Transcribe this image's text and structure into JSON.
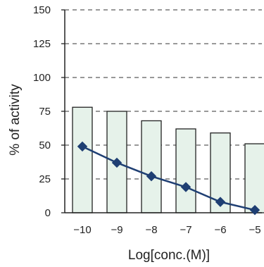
{
  "chart_data": {
    "type": "bar",
    "categories": [
      "-10",
      "-9",
      "-8",
      "-7",
      "-6",
      "-5"
    ],
    "xlabel": "Log[conc.(M)]",
    "ylabel": "% of activity",
    "ylim": [
      0,
      150
    ],
    "yticks": [
      "0",
      "25",
      "50",
      "75",
      "100",
      "125",
      "150"
    ],
    "grid": "dashed horizontal",
    "series": [
      {
        "type": "bar",
        "values": [
          78,
          75,
          68,
          62,
          59,
          51
        ],
        "color": "#e6f2ea",
        "stroke": "#222222"
      },
      {
        "type": "line",
        "values": [
          49,
          37,
          27,
          19,
          8,
          2
        ],
        "color": "#1f3f73",
        "marker": "diamond"
      }
    ]
  }
}
